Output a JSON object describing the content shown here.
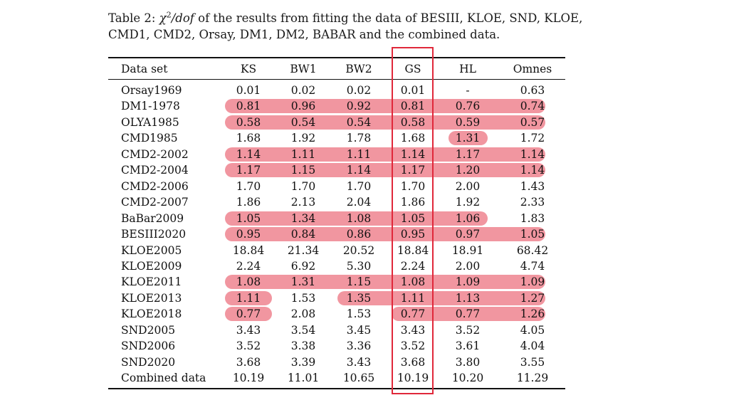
{
  "caption": {
    "prefix": "Table 2: ",
    "chi": "χ",
    "exp": "2",
    "dof": "/dof",
    "line1_rest": " of the results from fitting the data of BESIII, KLOE, SND, KLOE,",
    "line2": "CMD1, CMD2, Orsay, DM1, DM2, BABAR and the combined data."
  },
  "table": {
    "columns": [
      "Data set",
      "KS",
      "BW1",
      "BW2",
      "GS",
      "HL",
      "Omnes"
    ],
    "rows": [
      [
        "Orsay1969",
        "0.01",
        "0.02",
        "0.02",
        "0.01",
        "-",
        "0.63"
      ],
      [
        "DM1-1978",
        "0.81",
        "0.96",
        "0.92",
        "0.81",
        "0.76",
        "0.74"
      ],
      [
        "OLYA1985",
        "0.58",
        "0.54",
        "0.54",
        "0.58",
        "0.59",
        "0.57"
      ],
      [
        "CMD1985",
        "1.68",
        "1.92",
        "1.78",
        "1.68",
        "1.31",
        "1.72"
      ],
      [
        "CMD2-2002",
        "1.14",
        "1.11",
        "1.11",
        "1.14",
        "1.17",
        "1.14"
      ],
      [
        "CMD2-2004",
        "1.17",
        "1.15",
        "1.14",
        "1.17",
        "1.20",
        "1.14"
      ],
      [
        "CMD2-2006",
        "1.70",
        "1.70",
        "1.70",
        "1.70",
        "2.00",
        "1.43"
      ],
      [
        "CMD2-2007",
        "1.86",
        "2.13",
        "2.04",
        "1.86",
        "1.92",
        "2.33"
      ],
      [
        "BaBar2009",
        "1.05",
        "1.34",
        "1.08",
        "1.05",
        "1.06",
        "1.83"
      ],
      [
        "BESIII2020",
        "0.95",
        "0.84",
        "0.86",
        "0.95",
        "0.97",
        "1.05"
      ],
      [
        "KLOE2005",
        "18.84",
        "21.34",
        "20.52",
        "18.84",
        "18.91",
        "68.42"
      ],
      [
        "KLOE2009",
        "2.24",
        "6.92",
        "5.30",
        "2.24",
        "2.00",
        "4.74"
      ],
      [
        "KLOE2011",
        "1.08",
        "1.31",
        "1.15",
        "1.08",
        "1.09",
        "1.09"
      ],
      [
        "KLOE2013",
        "1.11",
        "1.53",
        "1.35",
        "1.11",
        "1.13",
        "1.27"
      ],
      [
        "KLOE2018",
        "0.77",
        "2.08",
        "1.53",
        "0.77",
        "0.77",
        "1.26"
      ],
      [
        "SND2005",
        "3.43",
        "3.54",
        "3.45",
        "3.43",
        "3.52",
        "4.05"
      ],
      [
        "SND2006",
        "3.52",
        "3.38",
        "3.36",
        "3.52",
        "3.61",
        "4.04"
      ],
      [
        "SND2020",
        "3.68",
        "3.39",
        "3.43",
        "3.68",
        "3.80",
        "3.55"
      ],
      [
        "Combined data",
        "10.19",
        "11.01",
        "10.65",
        "10.19",
        "10.20",
        "11.29"
      ]
    ],
    "highlights": [
      {
        "row": 1,
        "from": 1,
        "to": 6
      },
      {
        "row": 2,
        "from": 1,
        "to": 6
      },
      {
        "row": 3,
        "from": 5,
        "to": 5
      },
      {
        "row": 4,
        "from": 1,
        "to": 6
      },
      {
        "row": 5,
        "from": 1,
        "to": 6
      },
      {
        "row": 8,
        "from": 1,
        "to": 5
      },
      {
        "row": 9,
        "from": 1,
        "to": 6
      },
      {
        "row": 12,
        "from": 1,
        "to": 6
      },
      {
        "row": 13,
        "from": 1,
        "to": 1
      },
      {
        "row": 13,
        "from": 3,
        "to": 6
      },
      {
        "row": 14,
        "from": 1,
        "to": 1
      },
      {
        "row": 14,
        "from": 4,
        "to": 6
      }
    ],
    "highlight_color": "#e85060",
    "gs_box_color": "#e0283a"
  }
}
